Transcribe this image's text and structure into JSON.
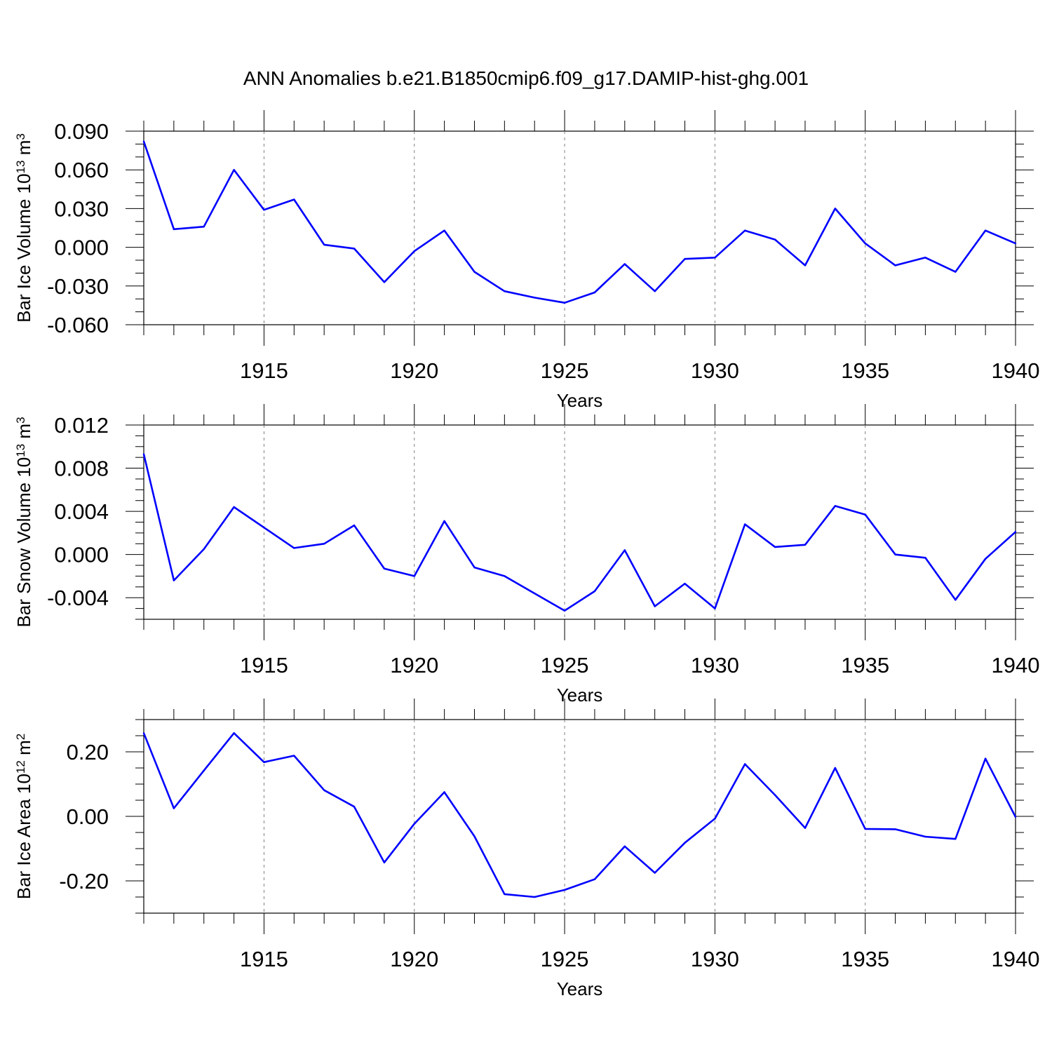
{
  "title": "ANN Anomalies b.e21.B1850cmip6.f09_g17.DAMIP-hist-ghg.001",
  "colors": {
    "line": "#0000ff",
    "axis": "#000000",
    "grid": "#808080"
  },
  "chart_data": [
    {
      "type": "line",
      "title": "ANN Anomalies b.e21.B1850cmip6.f09_g17.DAMIP-hist-ghg.001",
      "xlabel": "Years",
      "ylabel": {
        "prefix": "Bar Ice Volume 10",
        "exp1": "13",
        "unit": " m",
        "exp2": "3"
      },
      "xlim": [
        1911,
        1940
      ],
      "ylim": [
        -0.06,
        0.09
      ],
      "xticks": [
        1915,
        1920,
        1925,
        1930,
        1935,
        1940
      ],
      "yticks": [
        -0.06,
        -0.03,
        0.0,
        0.03,
        0.06,
        0.09
      ],
      "ytick_labels": [
        "-0.060",
        "-0.030",
        "0.000",
        "0.030",
        "0.060",
        "0.090"
      ],
      "yminor_step": 0.01,
      "grid": "dashed vertical at major x ticks",
      "x": [
        1911,
        1912,
        1913,
        1914,
        1915,
        1916,
        1917,
        1918,
        1919,
        1920,
        1921,
        1922,
        1923,
        1924,
        1925,
        1926,
        1927,
        1928,
        1929,
        1930,
        1931,
        1932,
        1933,
        1934,
        1935,
        1936,
        1937,
        1938,
        1939,
        1940
      ],
      "values": [
        0.082,
        0.014,
        0.016,
        0.06,
        0.029,
        0.037,
        0.002,
        -0.001,
        -0.027,
        -0.003,
        0.013,
        -0.019,
        -0.034,
        -0.039,
        -0.043,
        -0.035,
        -0.013,
        -0.034,
        -0.009,
        -0.008,
        0.013,
        0.006,
        -0.014,
        0.03,
        0.003,
        -0.014,
        -0.008,
        -0.019,
        0.013,
        0.003
      ]
    },
    {
      "type": "line",
      "xlabel": "Years",
      "ylabel": {
        "prefix": "Bar Snow Volume 10",
        "exp1": "13",
        "unit": " m",
        "exp2": "3"
      },
      "xlim": [
        1911,
        1940
      ],
      "ylim": [
        -0.006,
        0.012
      ],
      "xticks": [
        1915,
        1920,
        1925,
        1930,
        1935,
        1940
      ],
      "yticks": [
        -0.004,
        0.0,
        0.004,
        0.008,
        0.012
      ],
      "ytick_labels": [
        "-0.004",
        "0.000",
        "0.004",
        "0.008",
        "0.012"
      ],
      "yminor_step": 0.001,
      "grid": "dashed vertical at major x ticks",
      "x": [
        1911,
        1912,
        1913,
        1914,
        1915,
        1916,
        1917,
        1918,
        1919,
        1920,
        1921,
        1922,
        1923,
        1924,
        1925,
        1926,
        1927,
        1928,
        1929,
        1930,
        1931,
        1932,
        1933,
        1934,
        1935,
        1936,
        1937,
        1938,
        1939,
        1940
      ],
      "values": [
        0.0093,
        -0.0024,
        0.0005,
        0.0044,
        0.0025,
        0.0006,
        0.001,
        0.0027,
        -0.0013,
        -0.002,
        0.0031,
        -0.0012,
        -0.002,
        -0.0036,
        -0.0052,
        -0.0034,
        0.0004,
        -0.0048,
        -0.0027,
        -0.005,
        0.0028,
        0.0007,
        0.0009,
        0.0045,
        0.0037,
        0.0,
        -0.0003,
        -0.0042,
        -0.0004,
        0.0021
      ]
    },
    {
      "type": "line",
      "xlabel": "Years",
      "ylabel": {
        "prefix": "Bar Ice Area 10",
        "exp1": "12",
        "unit": " m",
        "exp2": "2"
      },
      "xlim": [
        1911,
        1940
      ],
      "ylim": [
        -0.3,
        0.3
      ],
      "xticks": [
        1915,
        1920,
        1925,
        1930,
        1935,
        1940
      ],
      "yticks": [
        -0.2,
        0.0,
        0.2
      ],
      "ytick_labels": [
        "-0.20",
        "0.00",
        "0.20"
      ],
      "yminor_step": 0.05,
      "grid": "dashed vertical at major x ticks",
      "x": [
        1911,
        1912,
        1913,
        1914,
        1915,
        1916,
        1917,
        1918,
        1919,
        1920,
        1921,
        1922,
        1923,
        1924,
        1925,
        1926,
        1927,
        1928,
        1929,
        1930,
        1931,
        1932,
        1933,
        1934,
        1935,
        1936,
        1937,
        1938,
        1939,
        1940
      ],
      "values": [
        0.258,
        0.025,
        0.142,
        0.258,
        0.168,
        0.188,
        0.081,
        0.03,
        -0.143,
        -0.023,
        0.075,
        -0.062,
        -0.241,
        -0.25,
        -0.228,
        -0.195,
        -0.093,
        -0.175,
        -0.082,
        -0.007,
        0.162,
        0.066,
        -0.036,
        0.15,
        -0.039,
        -0.04,
        -0.063,
        -0.07,
        0.179,
        -0.002
      ]
    }
  ]
}
